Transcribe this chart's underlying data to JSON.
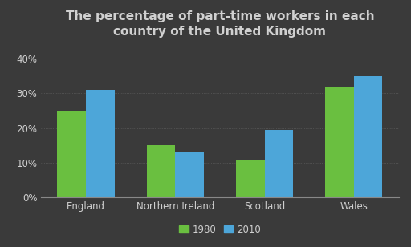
{
  "title": "The percentage of part-time workers in each\ncountry of the United Kingdom",
  "categories": [
    "England",
    "Northern Ireland",
    "Scotland",
    "Wales"
  ],
  "values_1980": [
    25,
    15,
    11,
    32
  ],
  "values_2010": [
    31,
    13,
    19.5,
    35
  ],
  "color_1980": "#6abf40",
  "color_2010": "#4da6d9",
  "background_color": "#3a3a3a",
  "text_color": "#d0d0d0",
  "yticks": [
    0,
    10,
    20,
    30,
    40
  ],
  "ytick_labels": [
    "0%",
    "10%",
    "20%",
    "30%",
    "40%"
  ],
  "ylim": [
    0,
    44
  ],
  "bar_width": 0.32,
  "title_fontsize": 11,
  "tick_fontsize": 8.5,
  "legend_fontsize": 8.5
}
